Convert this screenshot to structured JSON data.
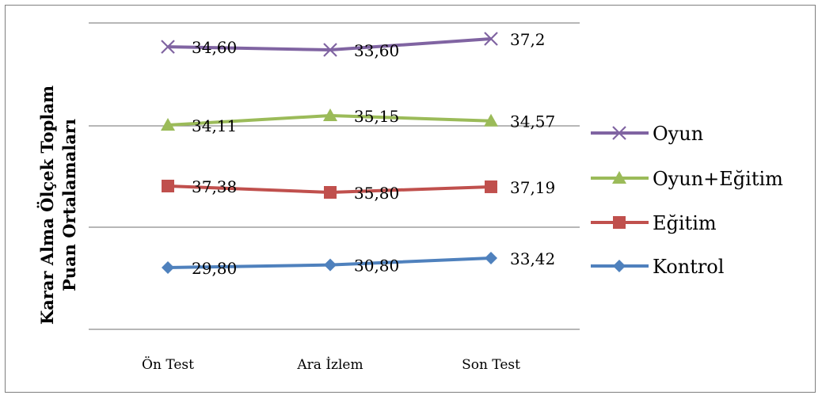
{
  "chart_data": {
    "type": "line",
    "title": "",
    "xlabel": "",
    "ylabel": [
      "Karar Alma Ölçek Toplam",
      "Puan Ortalamaları"
    ],
    "categories": [
      "Ön Test",
      "Ara İzlem",
      "Son Test"
    ],
    "grid": true,
    "legend_position": "right",
    "series": [
      {
        "name": "Oyun",
        "marker": "x",
        "color": "#8064a2",
        "values": [
          34.6,
          33.6,
          37.2
        ],
        "labels": [
          "34,60",
          "33,60",
          "37,2"
        ]
      },
      {
        "name": "Oyun+Eğitim",
        "marker": "triangle",
        "color": "#9bbb59",
        "values": [
          34.11,
          35.15,
          34.57
        ],
        "labels": [
          "34,11",
          "35,15",
          "34,57"
        ]
      },
      {
        "name": "Eğitim",
        "marker": "square",
        "color": "#c0504d",
        "values": [
          37.38,
          35.8,
          37.19
        ],
        "labels": [
          "37,38",
          "35,80",
          "37,19"
        ]
      },
      {
        "name": "Kontrol",
        "marker": "diamond",
        "color": "#4f81bd",
        "values": [
          29.8,
          30.8,
          33.42
        ],
        "labels": [
          "29,80",
          "30,80",
          "33,42"
        ]
      }
    ]
  }
}
